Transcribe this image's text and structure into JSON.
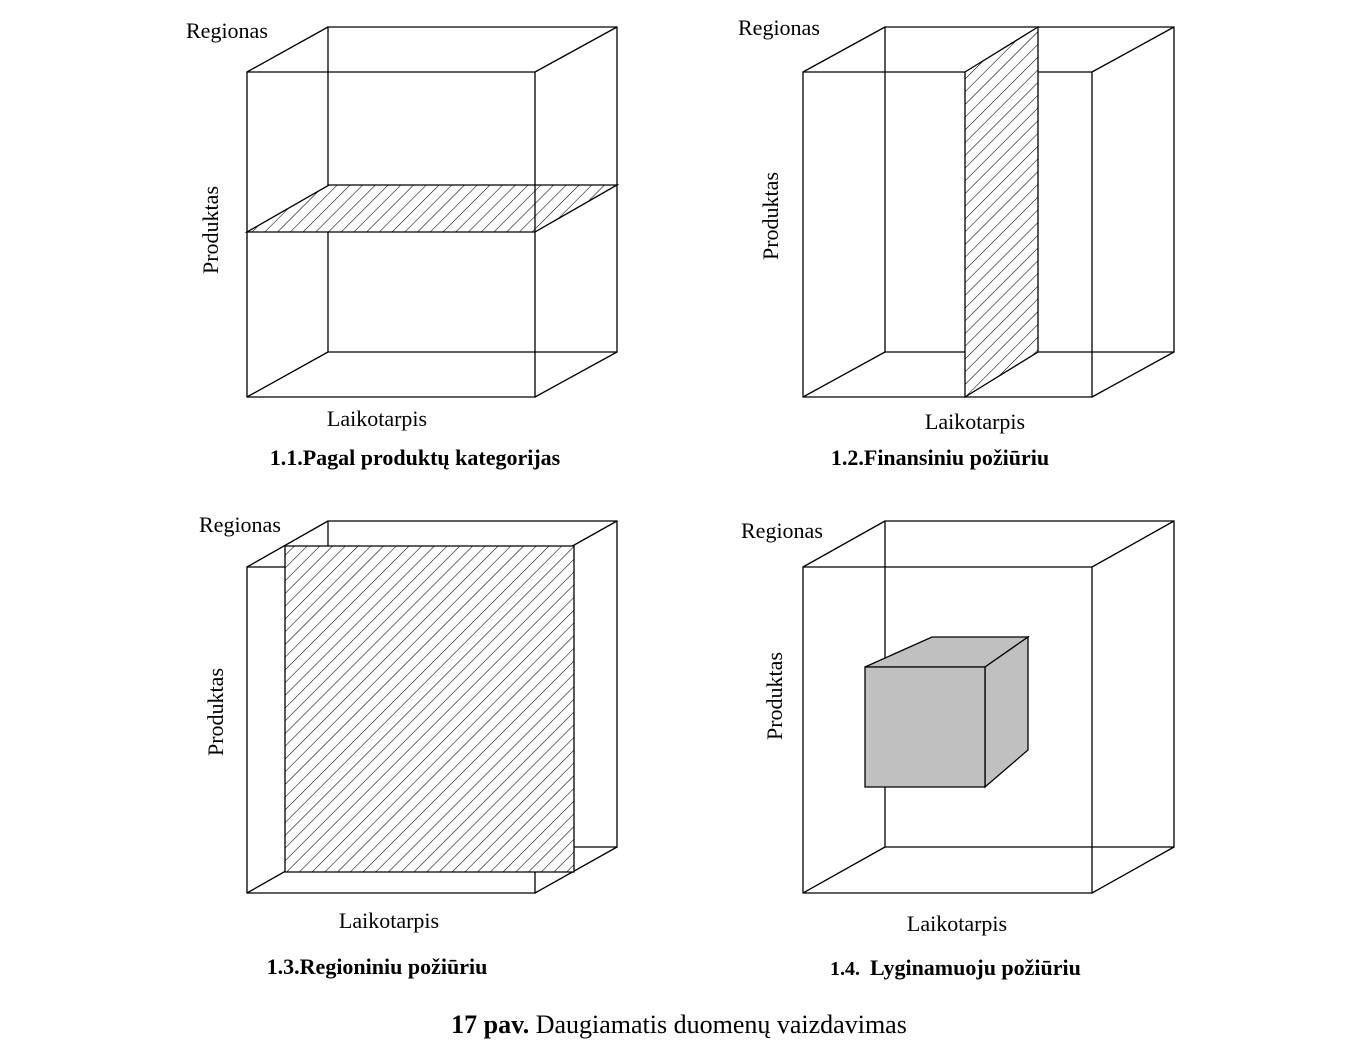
{
  "figure": {
    "number_label": "17 pav.",
    "caption_text": "Daugiamatis duomenų vaizdavimas",
    "hatch_color": "#000000",
    "solid_fill_color": "#c0c0c0"
  },
  "panels": [
    {
      "id": "1.1",
      "caption": "1.1.Pagal produktų kategorijas",
      "axis_region": "Regionas",
      "axis_product": "Produktas",
      "axis_period": "Laikotarpis",
      "highlight": "horizontal-slice"
    },
    {
      "id": "1.2",
      "caption": "1.2.Finansiniu požiūriu",
      "axis_region": "Regionas",
      "axis_product": "Produktas",
      "axis_period": "Laikotarpis",
      "highlight": "vertical-slice"
    },
    {
      "id": "1.3",
      "caption": "1.3.Regioniniu požiūriu",
      "axis_region": "Regionas",
      "axis_product": "Produktas",
      "axis_period": "Laikotarpis",
      "highlight": "depth-slice"
    },
    {
      "id": "1.4",
      "caption_number": "1.4.",
      "caption_text": "Lyginamuoju požiūriu",
      "axis_region": "Regionas",
      "axis_product": "Produktas",
      "axis_period": "Laikotarpis",
      "highlight": "sub-cube"
    }
  ]
}
